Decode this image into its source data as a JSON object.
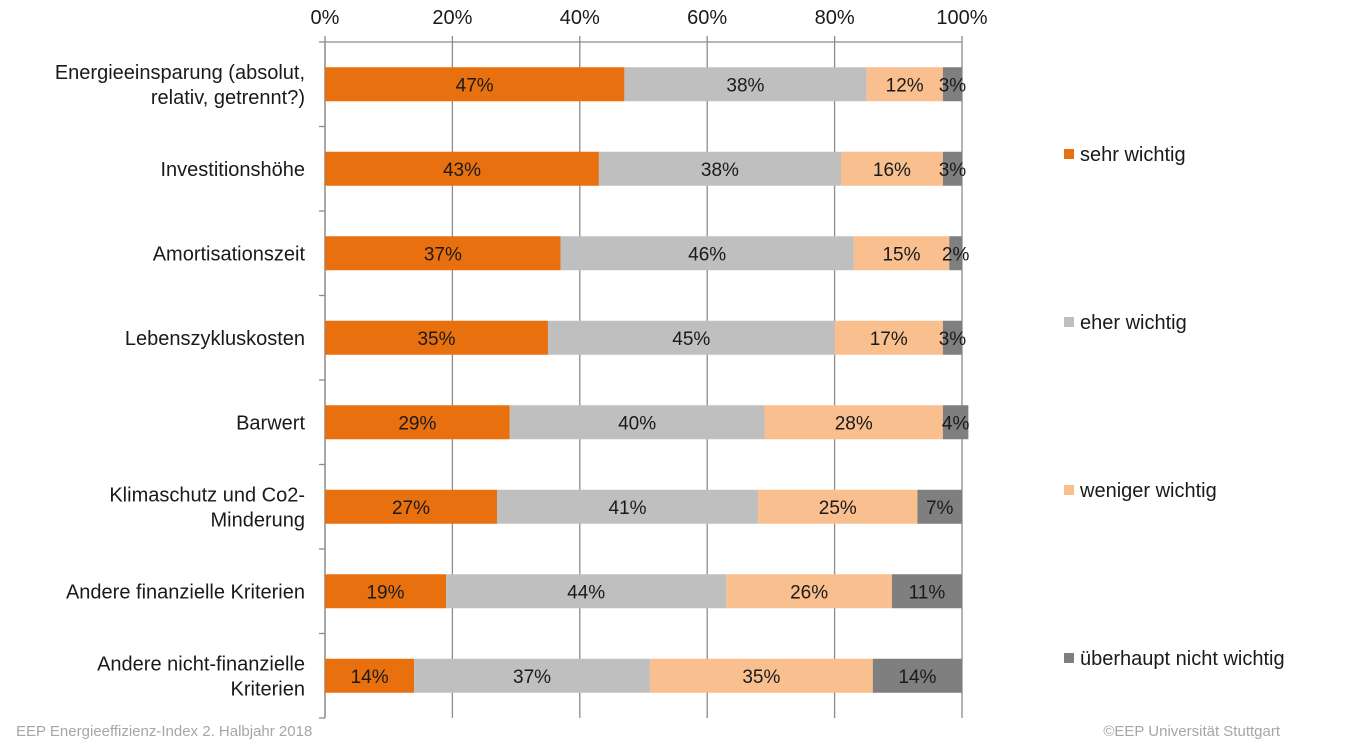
{
  "chart_data": {
    "type": "bar",
    "orientation": "horizontal",
    "stacked": true,
    "categories": [
      "Energieeinsparung (absolut, relativ, getrennt?)",
      "Investitionshöhe",
      "Amortisationszeit",
      "Lebenszykluskosten",
      "Barwert",
      "Klimaschutz und Co2-Minderung",
      "Andere finanzielle Kriterien",
      "Andere nicht-finanzielle Kriterien"
    ],
    "category_lines": [
      [
        "Energieeinsparung (absolut,",
        "relativ, getrennt?)"
      ],
      [
        "Investitionshöhe"
      ],
      [
        "Amortisationszeit"
      ],
      [
        "Lebenszykluskosten"
      ],
      [
        "Barwert"
      ],
      [
        "Klimaschutz und Co2-",
        "Minderung"
      ],
      [
        "Andere finanzielle Kriterien"
      ],
      [
        "Andere nicht-finanzielle",
        "Kriterien"
      ]
    ],
    "series": [
      {
        "name": "sehr wichtig",
        "color": "#e8700e",
        "values": [
          47,
          43,
          37,
          35,
          29,
          27,
          19,
          14
        ]
      },
      {
        "name": "eher wichtig",
        "color": "#bfbfbf",
        "values": [
          38,
          38,
          46,
          45,
          40,
          41,
          44,
          37
        ]
      },
      {
        "name": "weniger wichtig",
        "color": "#f9bf8f",
        "values": [
          12,
          16,
          15,
          17,
          28,
          25,
          26,
          35
        ]
      },
      {
        "name": "überhaupt nicht wichtig",
        "color": "#7f7f7f",
        "values": [
          3,
          3,
          2,
          3,
          4,
          7,
          11,
          14
        ]
      }
    ],
    "value_format": "{v}%",
    "xlim": [
      0,
      100
    ],
    "x_ticks": [
      "0%",
      "20%",
      "40%",
      "60%",
      "80%",
      "100%"
    ],
    "x_axis_position": "top",
    "grid": true,
    "legend_position": "right"
  },
  "footer": {
    "left": "EEP Energieeffizienz-Index 2. Halbjahr 2018",
    "right": "©EEP Universität Stuttgart"
  }
}
